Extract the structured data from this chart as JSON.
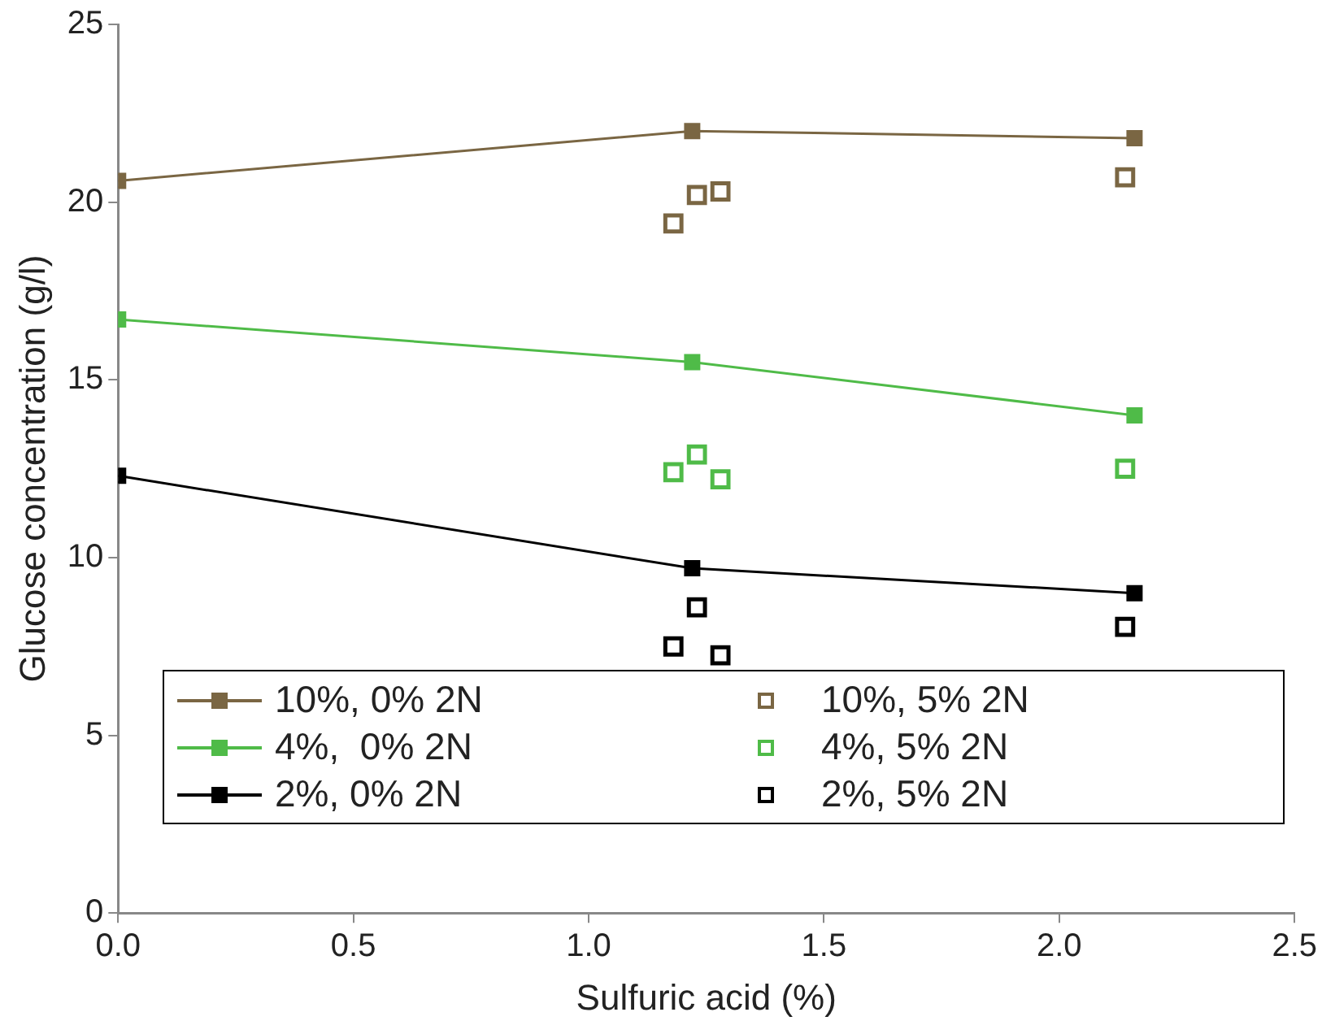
{
  "chart_data": {
    "type": "line",
    "xlabel": "Sulfuric acid (%)",
    "ylabel": "Glucose concentration (g/l)",
    "xlim": [
      0,
      2.5
    ],
    "xticks": [
      {
        "value": 0,
        "label": "0.0"
      },
      {
        "value": 0.5,
        "label": "0.5"
      },
      {
        "value": 1,
        "label": "1.0"
      },
      {
        "value": 1.5,
        "label": "1.5"
      },
      {
        "value": 2,
        "label": "2.0"
      },
      {
        "value": 2.5,
        "label": "2.5"
      }
    ],
    "ylim": [
      0,
      25
    ],
    "yticks": [
      0,
      5,
      10,
      15,
      20,
      25
    ],
    "grid": false,
    "legend": "bottom",
    "marker": "square",
    "line_style": "solid",
    "series": [
      {
        "name": "10%, 0% 2N",
        "color": "#7a6643",
        "x": [
          0,
          1.22,
          2.16
        ],
        "values": [
          20.6,
          22.0,
          21.8
        ]
      },
      {
        "name": "10%, 5% 2N",
        "type": "scatter",
        "color": "#7a6643",
        "x": [
          1.18,
          1.23,
          1.28,
          2.14
        ],
        "values": [
          19.4,
          20.2,
          20.3,
          20.7
        ]
      },
      {
        "name": "4%,  0% 2N",
        "color": "#4fbb48",
        "x": [
          0,
          1.22,
          2.16
        ],
        "values": [
          16.7,
          15.5,
          14.0
        ]
      },
      {
        "name": "4%, 5% 2N",
        "type": "scatter",
        "color": "#4fbb48",
        "x": [
          1.18,
          1.23,
          1.28,
          2.14
        ],
        "values": [
          12.4,
          12.9,
          12.2,
          12.5
        ]
      },
      {
        "name": "2%, 0% 2N",
        "color": "#000000",
        "x": [
          0,
          1.22,
          2.16
        ],
        "values": [
          12.3,
          9.7,
          9.0
        ]
      },
      {
        "name": "2%, 5% 2N",
        "type": "scatter",
        "color": "#000000",
        "x": [
          1.18,
          1.23,
          1.28,
          2.14
        ],
        "values": [
          7.5,
          8.6,
          7.25,
          8.05
        ]
      }
    ]
  }
}
